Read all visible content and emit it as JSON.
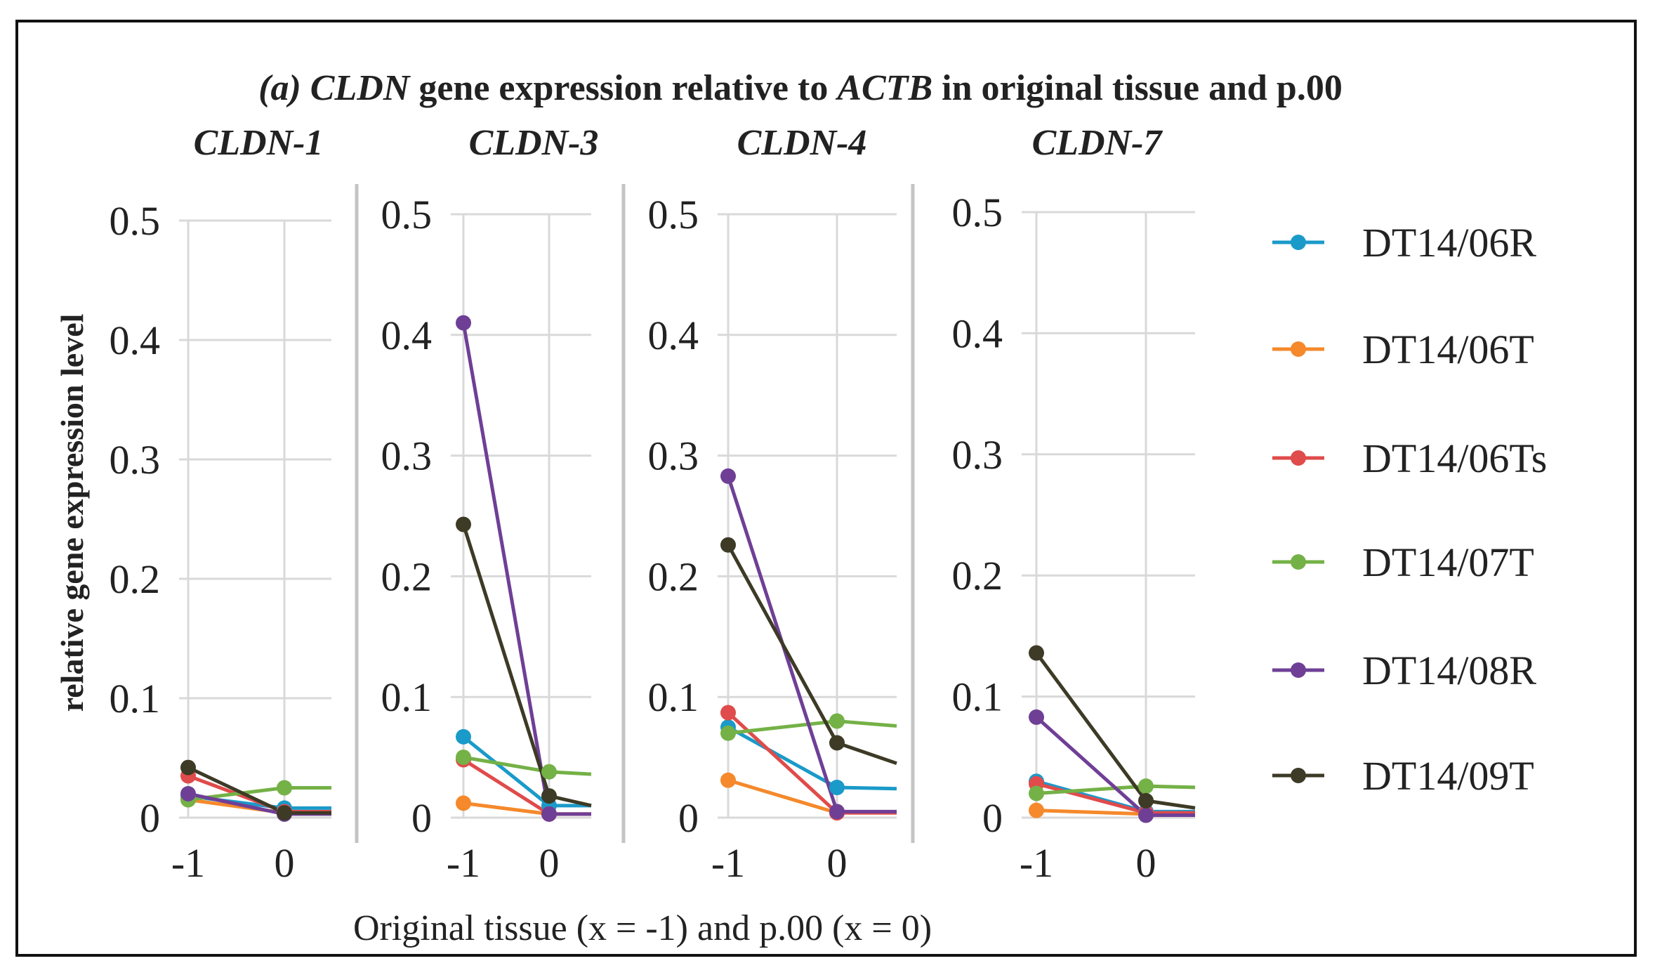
{
  "figure": {
    "title_parts": [
      {
        "text": "(a) ",
        "italic": true
      },
      {
        "text": "CLDN",
        "italic": true
      },
      {
        "text": " gene  expression relative to ",
        "italic": false
      },
      {
        "text": "ACTB",
        "italic": true
      },
      {
        "text": " in original  tissue and p.00",
        "italic": false
      }
    ],
    "ylabel": "relative gene expression level",
    "xlabel": "Original tissue (x = -1) and p.00 (x = 0)"
  },
  "chart_data": {
    "type": "line",
    "title": "(a) CLDN gene expression relative to ACTB in original tissue and p.00",
    "ylabel": "relative gene expression level",
    "xlabel": "Original tissue (x = -1) and p.00 (x = 0)",
    "x_ticks": [
      -1,
      0
    ],
    "x_tick_labels": [
      "-1",
      "0"
    ],
    "ylim": [
      0,
      0.5
    ],
    "y_ticks": [
      0,
      0.1,
      0.2,
      0.3,
      0.4,
      0.5
    ],
    "y_tick_labels": [
      "0",
      "0.1",
      "0.2",
      "0.3",
      "0.4",
      "0.5"
    ],
    "grid": true,
    "legend_position": "right",
    "series_names": [
      "DT14/06R",
      "DT14/06T",
      "DT14/06Ts",
      "DT14/07T",
      "DT14/08R",
      "DT14/09T"
    ],
    "series_colors": [
      "#1a9ac9",
      "#f5892b",
      "#e04b4b",
      "#74b146",
      "#6f3f96",
      "#3d3a26"
    ],
    "panels": [
      {
        "name": "CLDN-1",
        "values": [
          [
            0.018,
            0.008,
            0.008
          ],
          [
            0.015,
            0.004,
            0.004
          ],
          [
            0.035,
            0.005,
            0.005
          ],
          [
            0.015,
            0.025,
            0.025
          ],
          [
            0.02,
            0.003,
            0.003
          ],
          [
            0.042,
            0.004,
            0.004
          ]
        ]
      },
      {
        "name": "CLDN-3",
        "values": [
          [
            0.067,
            0.01,
            0.01
          ],
          [
            0.012,
            0.003,
            0.003
          ],
          [
            0.048,
            0.003,
            0.003
          ],
          [
            0.05,
            0.038,
            0.036
          ],
          [
            0.41,
            0.003,
            0.003
          ],
          [
            0.243,
            0.018,
            0.01
          ]
        ]
      },
      {
        "name": "CLDN-4",
        "values": [
          [
            0.075,
            0.025,
            0.024
          ],
          [
            0.031,
            0.004,
            0.004
          ],
          [
            0.087,
            0.004,
            0.004
          ],
          [
            0.07,
            0.08,
            0.076
          ],
          [
            0.283,
            0.005,
            0.005
          ],
          [
            0.226,
            0.062,
            0.045
          ]
        ]
      },
      {
        "name": "CLDN-7",
        "values": [
          [
            0.03,
            0.005,
            0.005
          ],
          [
            0.006,
            0.003,
            0.003
          ],
          [
            0.028,
            0.004,
            0.004
          ],
          [
            0.02,
            0.026,
            0.025
          ],
          [
            0.083,
            0.002,
            0.002
          ],
          [
            0.136,
            0.014,
            0.008
          ]
        ]
      }
    ]
  }
}
